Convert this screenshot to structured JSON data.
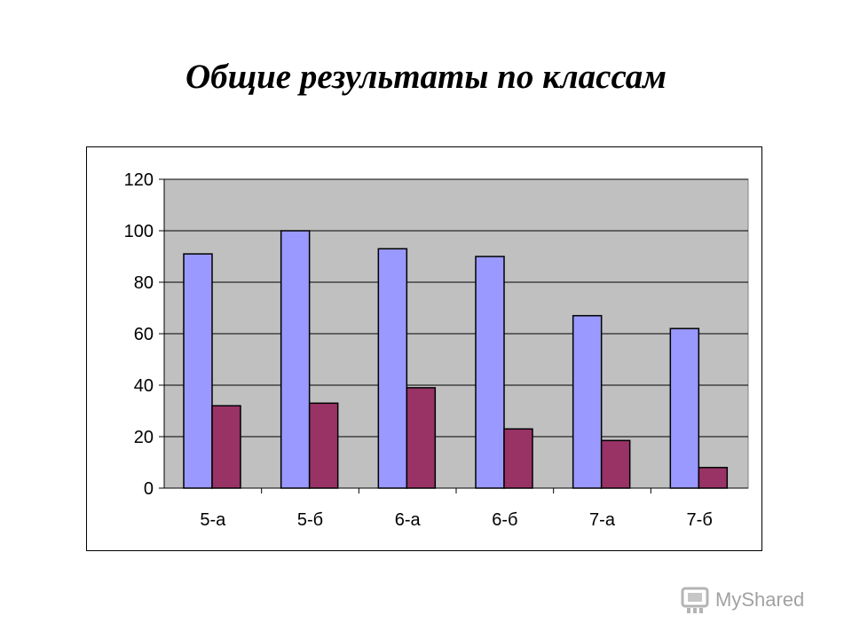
{
  "title": "Общие результаты по классам",
  "watermark": {
    "icon": "mystared-logo-icon",
    "text": "MyShared"
  },
  "colors": {
    "plot_background": "#c0c0c0",
    "series_1": "#9999ff",
    "series_2": "#993366",
    "gridline": "#000000"
  },
  "chart_data": {
    "type": "bar",
    "title": "",
    "xlabel": "",
    "ylabel": "",
    "categories": [
      "5-а",
      "5-б",
      "6-а",
      "6-б",
      "7-а",
      "7-б"
    ],
    "series": [
      {
        "values": [
          91,
          100,
          93,
          90,
          67,
          62
        ]
      },
      {
        "values": [
          32,
          33,
          39,
          23,
          18.5,
          8
        ]
      }
    ],
    "ylim": [
      0,
      120
    ],
    "yticks": [
      0,
      20,
      40,
      60,
      80,
      100,
      120
    ],
    "grid": true,
    "legend": "none"
  }
}
